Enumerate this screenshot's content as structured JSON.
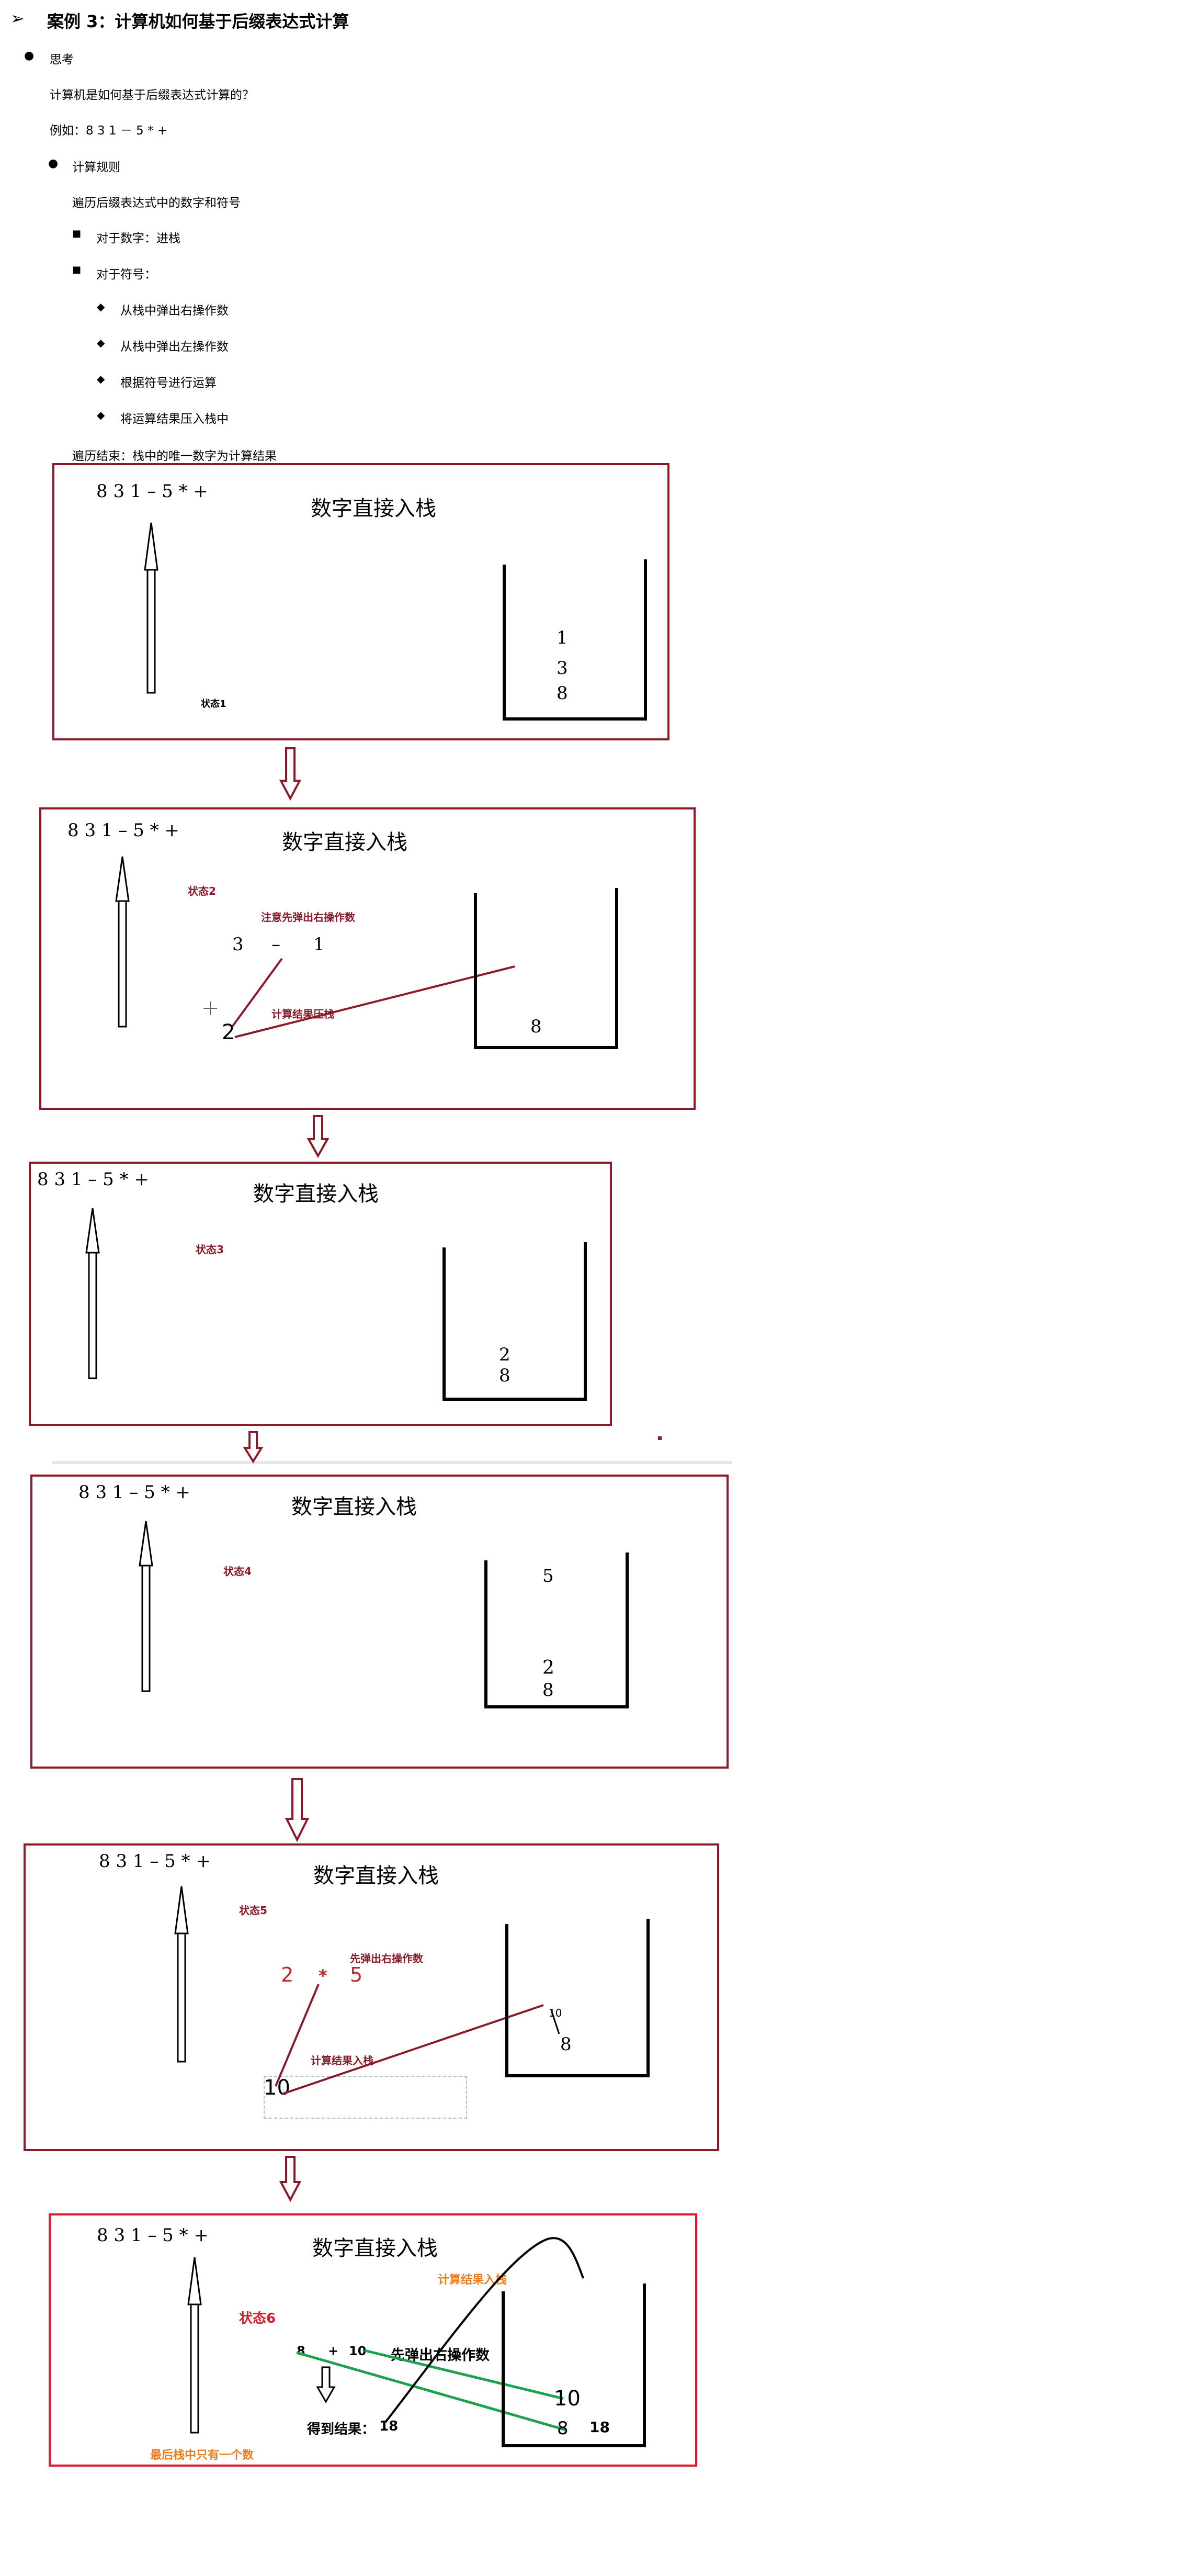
{
  "header": {
    "title_marker": "➢",
    "title": "案例 3：计算机如何基于后缀表达式计算"
  },
  "outline": {
    "think": "思考",
    "question": "计算机是如何基于后缀表达式计算的？",
    "example": "例如：8 3 1 － 5 * +",
    "rule": "计算规则",
    "traverse": "遍历后缀表达式中的数字和符号",
    "on_number": "对于数字：进栈",
    "on_symbol": "对于符号：",
    "step1": "从栈中弹出右操作数",
    "step2": "从栈中弹出左操作数",
    "step3": "根据符号进行运算",
    "step4": "将运算结果压入栈中",
    "end": "遍历结束：栈中的唯一数字为计算结果"
  },
  "panels": {
    "expression": "8 3 1 – 5 * +",
    "caption": "数字直接入栈",
    "p1": {
      "state": "状态1",
      "stack": [
        "1",
        "3",
        "8"
      ]
    },
    "p2": {
      "state": "状态2",
      "note": "注意先弹出右操作数",
      "left": "3",
      "op": "–",
      "right": "1",
      "result": "2",
      "push_note": "计算结果压栈",
      "stack": [
        "8"
      ]
    },
    "p3": {
      "state": "状态3",
      "stack": [
        "2",
        "8"
      ]
    },
    "p4": {
      "state": "状态4",
      "stack": [
        "5",
        "2",
        "8"
      ]
    },
    "p5": {
      "state": "状态5",
      "note": "先弹出右操作数",
      "left": "2",
      "op": "*",
      "right": "5",
      "result": "10",
      "push_note": "计算结果入栈",
      "stack_top": "10",
      "stack": [
        "8"
      ]
    },
    "p6": {
      "state": "状态6",
      "push_note": "计算结果入栈",
      "left": "8",
      "op": "+",
      "right": "10",
      "note": "先弹出右操作数",
      "result_label": "得到结果：",
      "result": "18",
      "stack_10": "10",
      "stack_8": "8",
      "stack_18": "18",
      "final_note": "最后栈中只有一个数"
    }
  },
  "colors": {
    "panel_border": "#8b1a2b",
    "panel6_border": "#e0192c",
    "arrow": "#8b1a2b",
    "green_line": "#1aa34a",
    "orange": "#f07b1a"
  }
}
